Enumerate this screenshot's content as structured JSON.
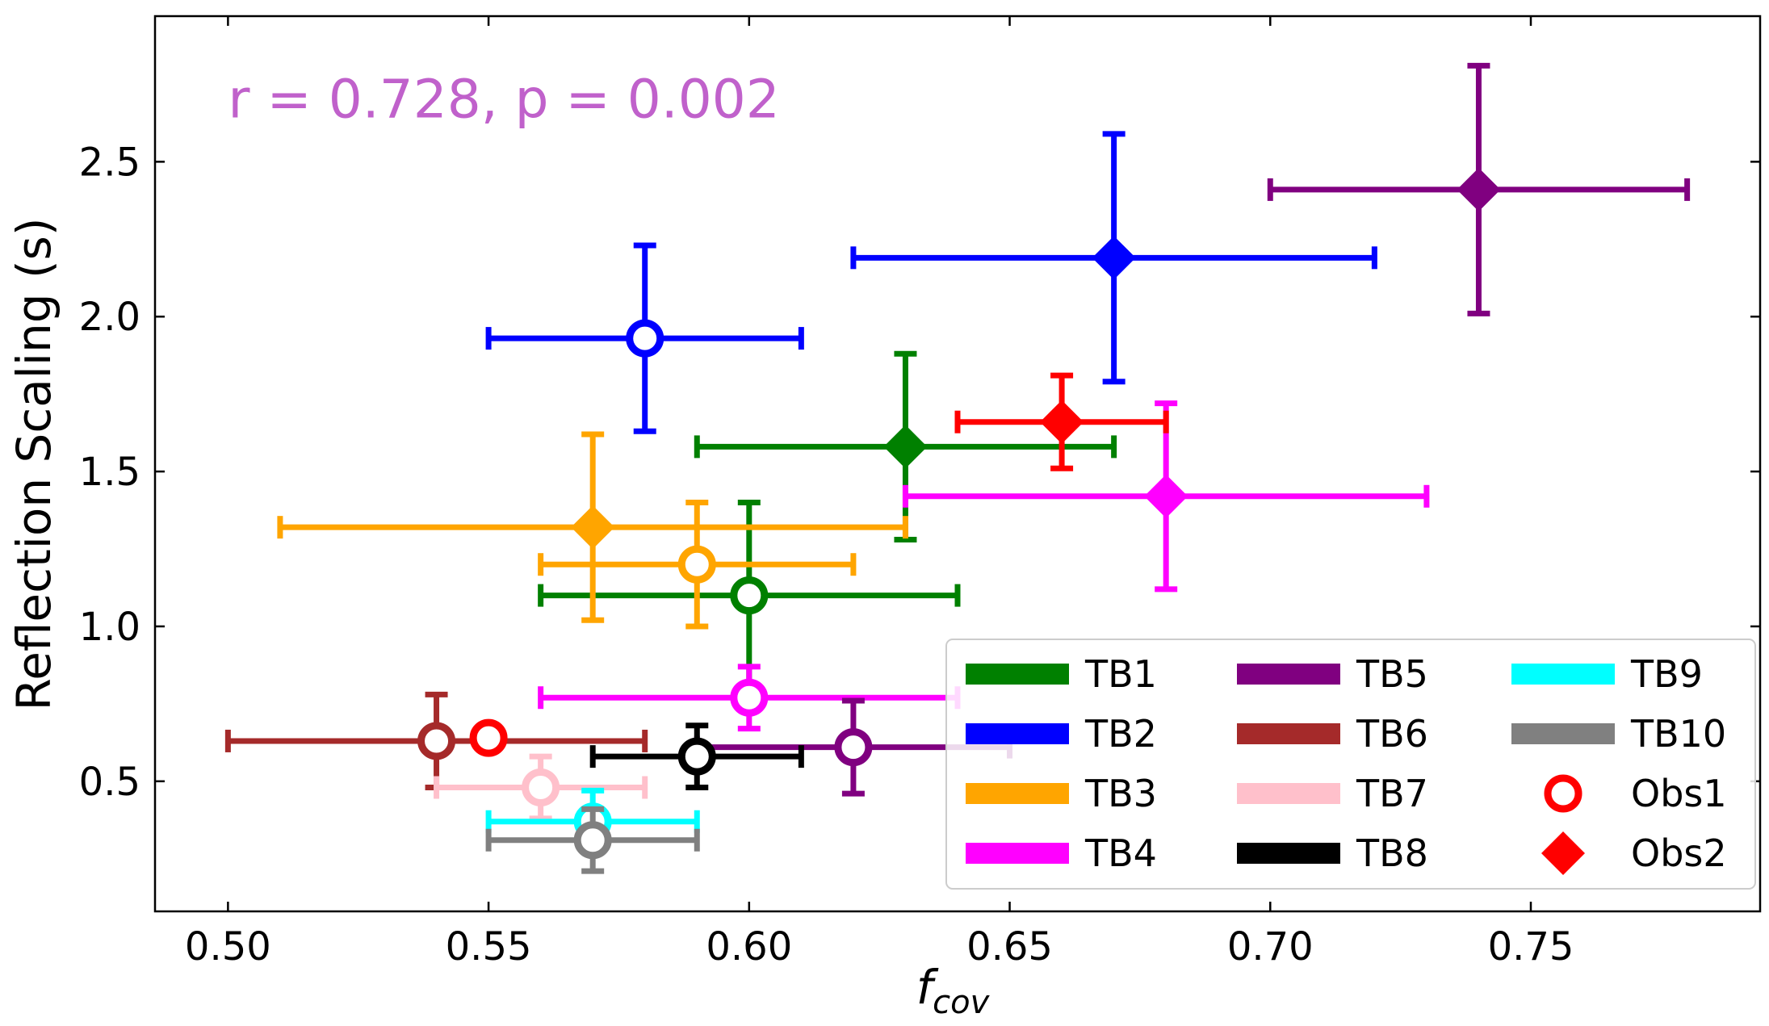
{
  "chart_data": {
    "type": "scatter",
    "title": "",
    "xlabel": "f",
    "xlabel_subscript": "cov",
    "ylabel": "Reflection Scaling (s)",
    "xlim": [
      0.486,
      0.794
    ],
    "ylim": [
      0.08,
      2.97
    ],
    "xticks": [
      0.5,
      0.55,
      0.6,
      0.65,
      0.7,
      0.75
    ],
    "xtick_labels": [
      "0.50",
      "0.55",
      "0.60",
      "0.65",
      "0.70",
      "0.75"
    ],
    "yticks": [
      0.5,
      1.0,
      1.5,
      2.0,
      2.5
    ],
    "ytick_labels": [
      "0.5",
      "1.0",
      "1.5",
      "2.0",
      "2.5"
    ],
    "annotation": {
      "text": "r = 0.728, p = 0.002",
      "color": "#c061cb",
      "x": 0.5,
      "y": 2.7
    },
    "legend_position": "lower-right",
    "series": [
      {
        "name": "TB1",
        "color": "#008000",
        "points": [
          {
            "obs": "Obs1",
            "x": 0.6,
            "y": 1.1,
            "xlo": 0.56,
            "xhi": 0.64,
            "ylo": 0.8,
            "yhi": 1.4
          },
          {
            "obs": "Obs2",
            "x": 0.63,
            "y": 1.58,
            "xlo": 0.59,
            "xhi": 0.67,
            "ylo": 1.28,
            "yhi": 1.88
          }
        ]
      },
      {
        "name": "TB2",
        "color": "#0000ff",
        "points": [
          {
            "obs": "Obs1",
            "x": 0.58,
            "y": 1.93,
            "xlo": 0.55,
            "xhi": 0.61,
            "ylo": 1.63,
            "yhi": 2.23
          },
          {
            "obs": "Obs2",
            "x": 0.67,
            "y": 2.19,
            "xlo": 0.62,
            "xhi": 0.72,
            "ylo": 1.79,
            "yhi": 2.59
          }
        ]
      },
      {
        "name": "TB3",
        "color": "#ffa500",
        "points": [
          {
            "obs": "Obs1",
            "x": 0.59,
            "y": 1.2,
            "xlo": 0.56,
            "xhi": 0.62,
            "ylo": 1.0,
            "yhi": 1.4
          },
          {
            "obs": "Obs2",
            "x": 0.57,
            "y": 1.32,
            "xlo": 0.51,
            "xhi": 0.63,
            "ylo": 1.02,
            "yhi": 1.62
          }
        ]
      },
      {
        "name": "TB4",
        "color": "#ff00ff",
        "points": [
          {
            "obs": "Obs1",
            "x": 0.6,
            "y": 0.77,
            "xlo": 0.56,
            "xhi": 0.64,
            "ylo": 0.67,
            "yhi": 0.87
          },
          {
            "obs": "Obs2",
            "x": 0.68,
            "y": 1.42,
            "xlo": 0.63,
            "xhi": 0.73,
            "ylo": 1.12,
            "yhi": 1.72
          }
        ]
      },
      {
        "name": "TB5",
        "color": "#800080",
        "points": [
          {
            "obs": "Obs1",
            "x": 0.62,
            "y": 0.61,
            "xlo": 0.59,
            "xhi": 0.65,
            "ylo": 0.46,
            "yhi": 0.76
          },
          {
            "obs": "Obs2",
            "x": 0.74,
            "y": 2.41,
            "xlo": 0.7,
            "xhi": 0.78,
            "ylo": 2.01,
            "yhi": 2.81
          }
        ]
      },
      {
        "name": "TB6",
        "color": "#a52a2a",
        "points": [
          {
            "obs": "Obs1",
            "x": 0.54,
            "y": 0.63,
            "xlo": 0.5,
            "xhi": 0.58,
            "ylo": 0.48,
            "yhi": 0.78
          }
        ]
      },
      {
        "name": "TB7",
        "color": "#ffc0cb",
        "points": [
          {
            "obs": "Obs1",
            "x": 0.56,
            "y": 0.48,
            "xlo": 0.54,
            "xhi": 0.58,
            "ylo": 0.38,
            "yhi": 0.58
          }
        ]
      },
      {
        "name": "TB8",
        "color": "#000000",
        "points": [
          {
            "obs": "Obs1",
            "x": 0.59,
            "y": 0.58,
            "xlo": 0.57,
            "xhi": 0.61,
            "ylo": 0.48,
            "yhi": 0.68
          }
        ]
      },
      {
        "name": "TB9",
        "color": "#00ffff",
        "points": [
          {
            "obs": "Obs1",
            "x": 0.57,
            "y": 0.37,
            "xlo": 0.55,
            "xhi": 0.59,
            "ylo": 0.27,
            "yhi": 0.47
          }
        ]
      },
      {
        "name": "TB10",
        "color": "#808080",
        "points": [
          {
            "obs": "Obs1",
            "x": 0.57,
            "y": 0.31,
            "xlo": 0.55,
            "xhi": 0.59,
            "ylo": 0.21,
            "yhi": 0.41
          }
        ]
      },
      {
        "name": "Obs1-extra",
        "color": "#ff0000",
        "hidden_in_legend": true,
        "points": [
          {
            "obs": "Obs1",
            "x": 0.55,
            "y": 0.64,
            "xlo": 0.55,
            "xhi": 0.55,
            "ylo": 0.64,
            "yhi": 0.64
          }
        ]
      },
      {
        "name": "Obs2-extra",
        "color": "#ff0000",
        "hidden_in_legend": true,
        "points": [
          {
            "obs": "Obs2",
            "x": 0.66,
            "y": 1.66,
            "xlo": 0.64,
            "xhi": 0.68,
            "ylo": 1.51,
            "yhi": 1.81
          }
        ]
      }
    ],
    "legend": {
      "series_entries": [
        "TB1",
        "TB2",
        "TB3",
        "TB4",
        "TB5",
        "TB6",
        "TB7",
        "TB8",
        "TB9",
        "TB10"
      ],
      "marker_entries": [
        {
          "label": "Obs1",
          "marker": "circle-open",
          "color": "#ff0000"
        },
        {
          "label": "Obs2",
          "marker": "diamond",
          "color": "#ff0000"
        }
      ]
    }
  }
}
